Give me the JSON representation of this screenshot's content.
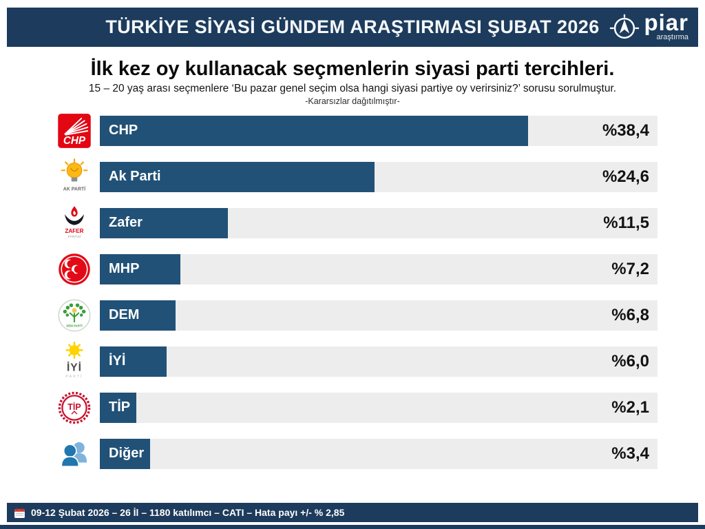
{
  "header": {
    "title": "TÜRKİYE SİYASİ GÜNDEM ARAŞTIRMASI ŞUBAT 2026",
    "brand": {
      "name": "piar",
      "tagline": "araştırma"
    }
  },
  "intro": {
    "title": "İlk kez oy kullanacak seçmenlerin siyasi parti tercihleri.",
    "subtitle": "15 – 20 yaş arası seçmenlere ‘Bu pazar genel seçim olsa hangi siyasi partiye oy verirsiniz?’ sorusu sorulmuştur.",
    "note": "-Kararsızlar dağıtılmıştır-"
  },
  "chart_data": {
    "type": "bar",
    "orientation": "horizontal",
    "title": "İlk kez oy kullanacak seçmenlerin siyasi parti tercihleri.",
    "categories": [
      "CHP",
      "Ak Parti",
      "Zafer",
      "MHP",
      "DEM",
      "İYİ",
      "TİP",
      "Diğer"
    ],
    "values": [
      38.4,
      24.6,
      11.5,
      7.2,
      6.8,
      6.0,
      2.1,
      3.4
    ],
    "value_labels": [
      "%38,4",
      "%24,6",
      "%11,5",
      "%7,2",
      "%6,8",
      "%6,0",
      "%2,1",
      "%3,4"
    ],
    "xlim": [
      0,
      50
    ],
    "grid": false,
    "legend": false,
    "bar_color": "#215177",
    "track_color": "#ededed"
  },
  "logos": {
    "chp": {
      "label": "CHP"
    },
    "akparti": {
      "label": "AK PARTİ"
    },
    "zafer": {
      "label": "ZAFER",
      "sublabel": "PARTİSİ"
    },
    "dem": {
      "label": "DEM PARTİ"
    },
    "iyi": {
      "label": "İYİ",
      "sublabel": "PARTİ"
    },
    "tip": {
      "label": "TİP"
    }
  },
  "footer": {
    "text": "09-12 Şubat 2026 – 26 İl – 1180 katılımcı – CATI – Hata payı +/- % 2,85"
  },
  "colors": {
    "header_bg": "#1d3b5c",
    "footer_bg": "#1d3b5c",
    "bar": "#215177",
    "track": "#ededed",
    "value_text": "#121212"
  }
}
